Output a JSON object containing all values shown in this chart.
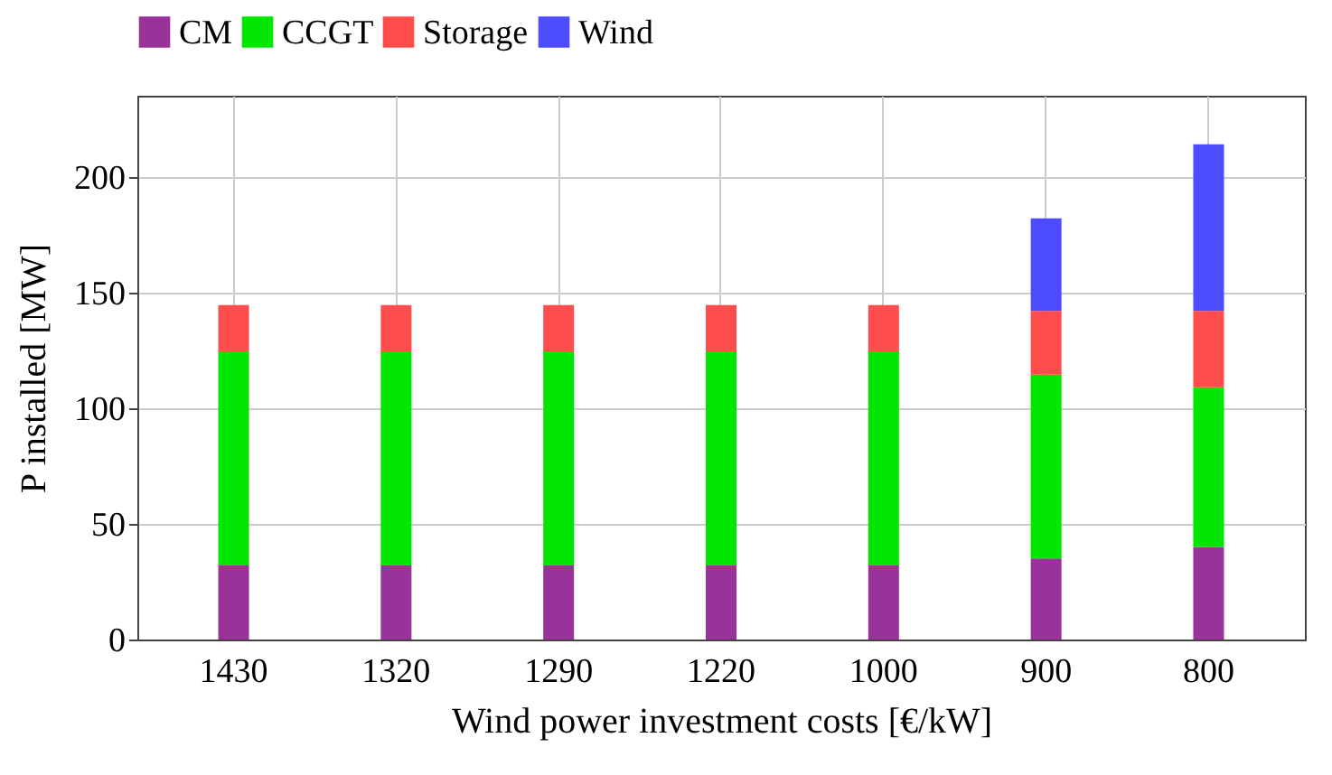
{
  "chart_data": {
    "type": "bar",
    "stacked": true,
    "xlabel": "Wind power investment costs [€/kW]",
    "ylabel": "P installed [MW]",
    "categories": [
      "1430",
      "1320",
      "1290",
      "1220",
      "1000",
      "900",
      "800"
    ],
    "series": [
      {
        "name": "CM",
        "color": "#993399",
        "values": [
          32,
          32,
          32,
          32,
          32,
          35,
          40
        ]
      },
      {
        "name": "CCGT",
        "color": "#00e600",
        "values": [
          92.5,
          92.5,
          92.5,
          92.5,
          92.5,
          79.5,
          69
        ]
      },
      {
        "name": "Storage",
        "color": "#ff4d4d",
        "values": [
          20,
          20,
          20,
          20,
          20,
          27.5,
          33
        ]
      },
      {
        "name": "Wind",
        "color": "#4d4dff",
        "values": [
          0,
          0,
          0,
          0,
          0,
          40,
          72
        ]
      }
    ],
    "ylim": [
      0,
      235
    ],
    "yticks": [
      0,
      50,
      100,
      150,
      200
    ],
    "grid": true,
    "legend": "top"
  }
}
